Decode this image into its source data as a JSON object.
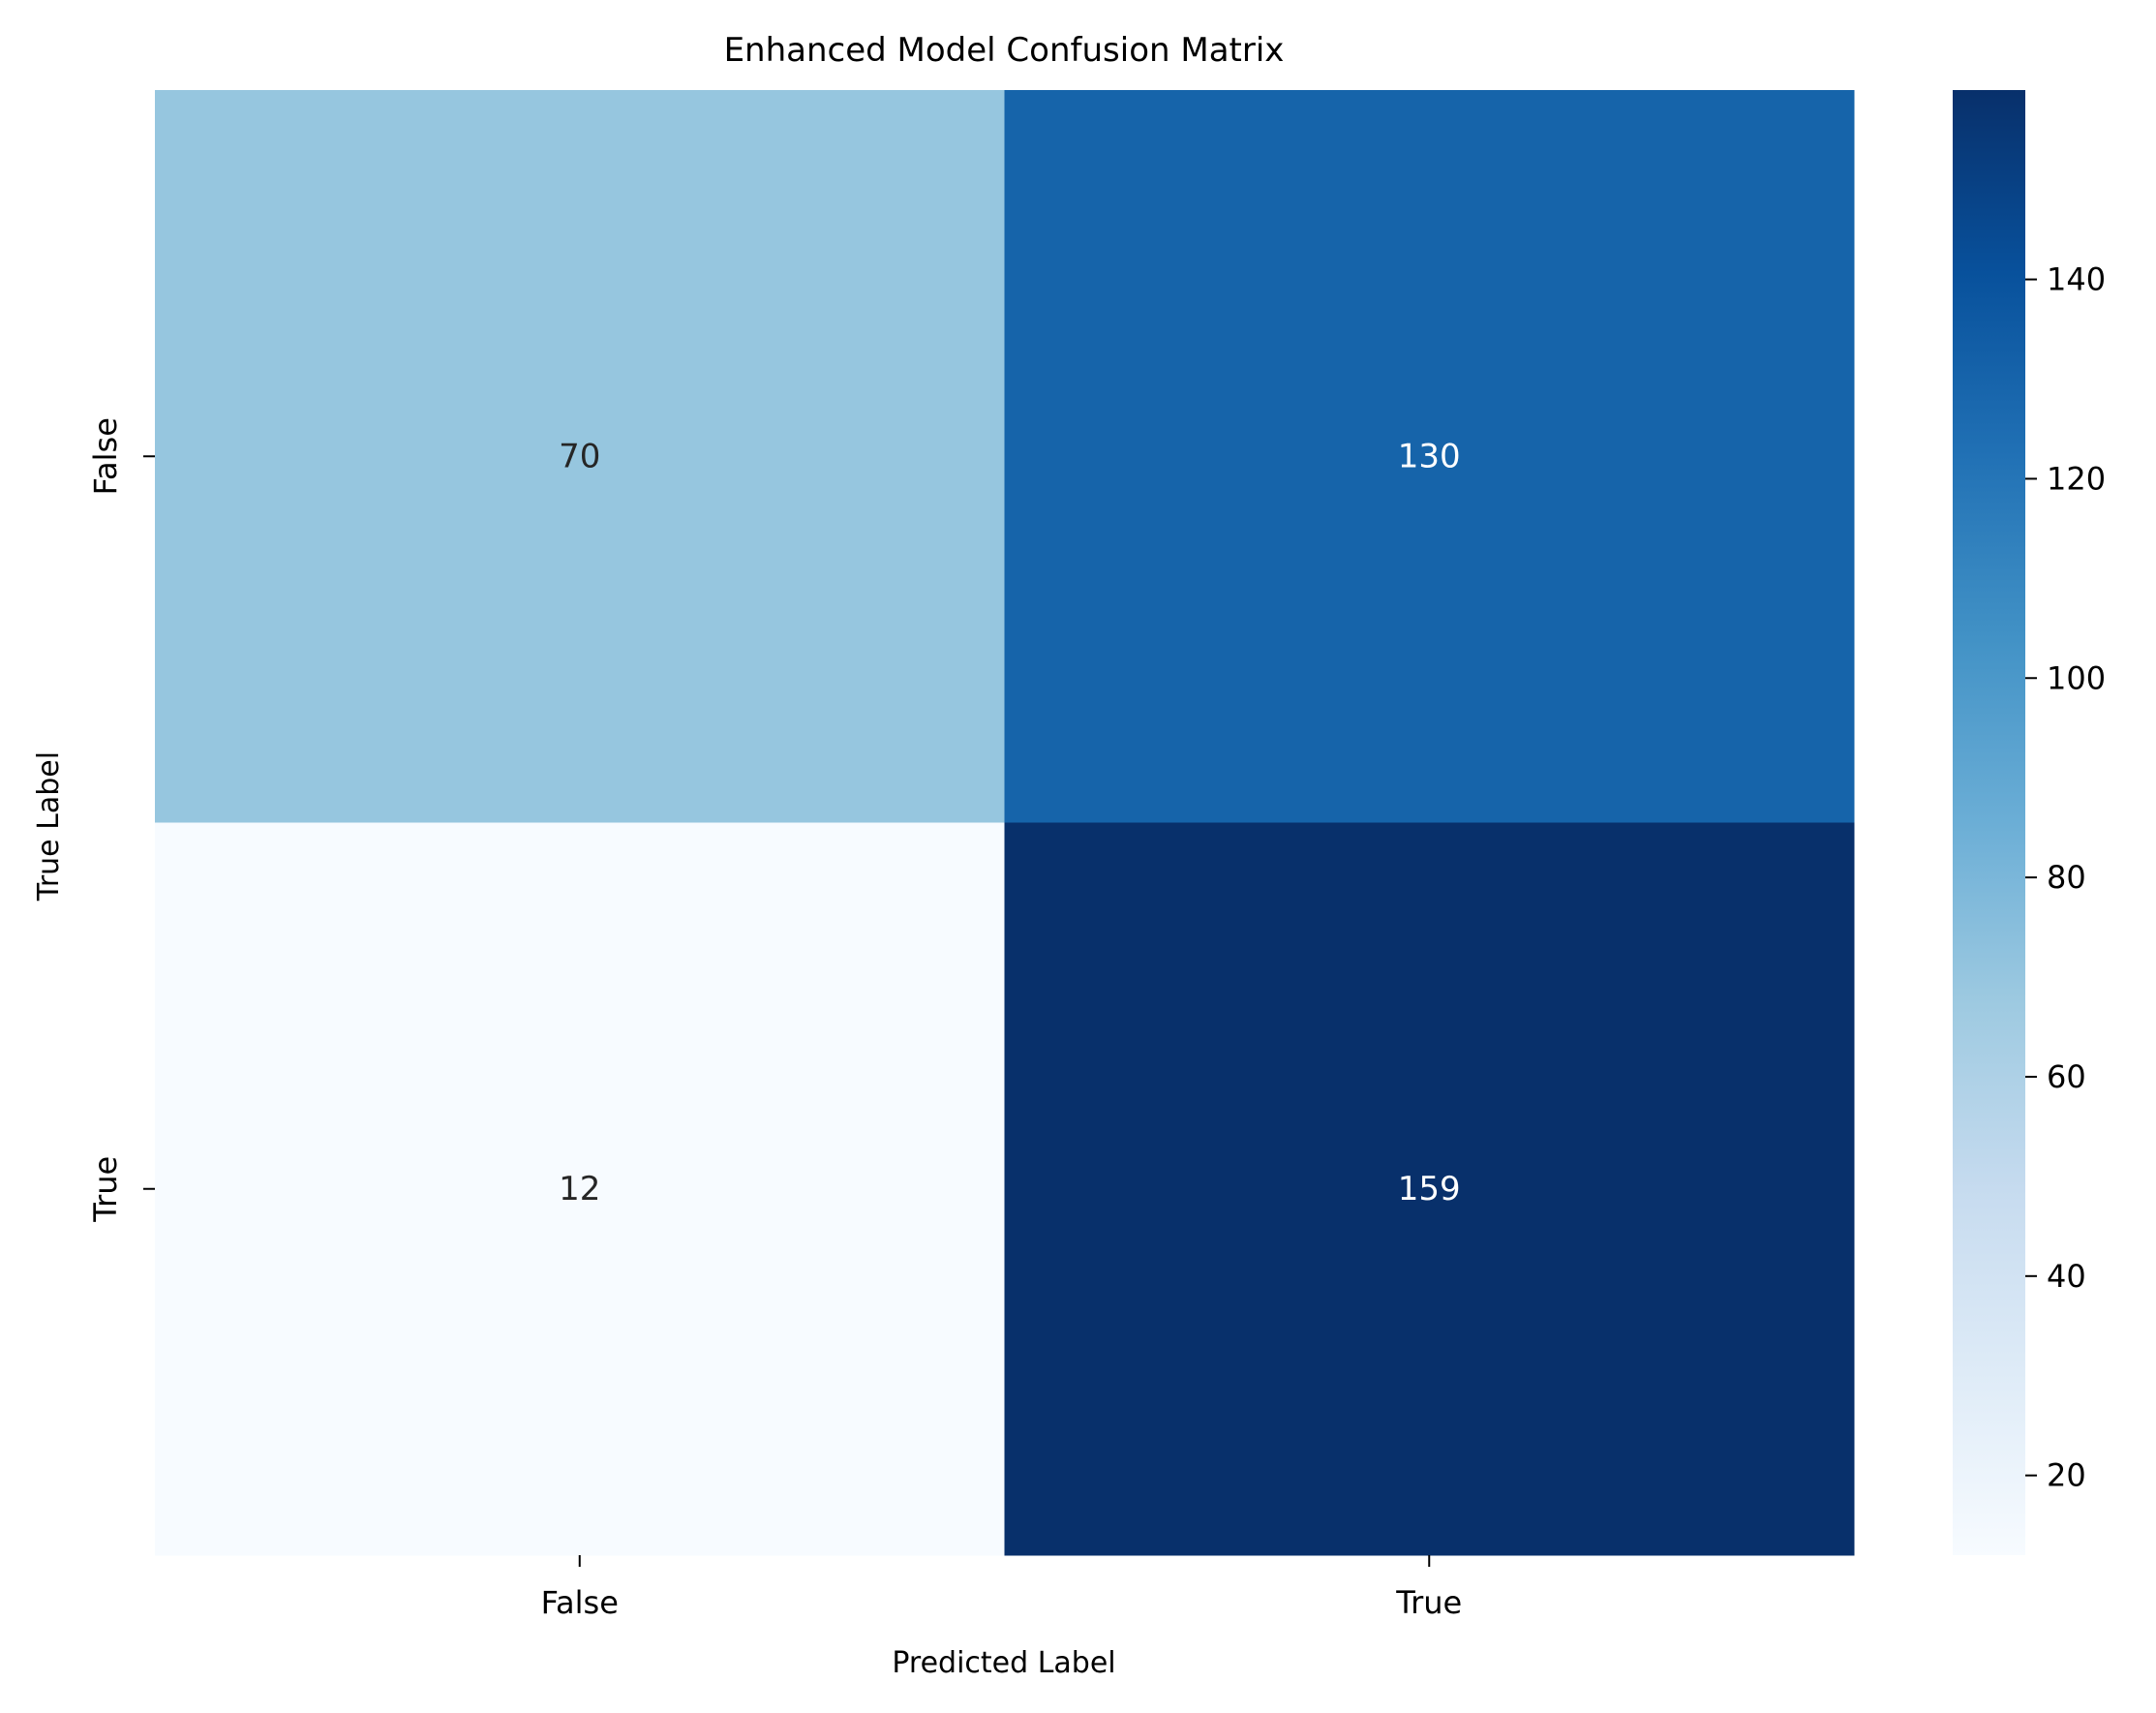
{
  "chart_data": {
    "type": "heatmap",
    "title": "Enhanced Model Confusion Matrix",
    "xlabel": "Predicted Label",
    "ylabel": "True Label",
    "x_categories": [
      "False",
      "True"
    ],
    "y_categories": [
      "False",
      "True"
    ],
    "values": [
      [
        70,
        130
      ],
      [
        12,
        159
      ]
    ],
    "colormap": "Blues",
    "colorbar": {
      "vmin": 12,
      "vmax": 159,
      "ticks": [
        20,
        40,
        60,
        80,
        100,
        120,
        140
      ]
    },
    "annotation_colors": {
      "light_bg": "#262626",
      "dark_bg": "#ffffff"
    },
    "grid": false
  }
}
